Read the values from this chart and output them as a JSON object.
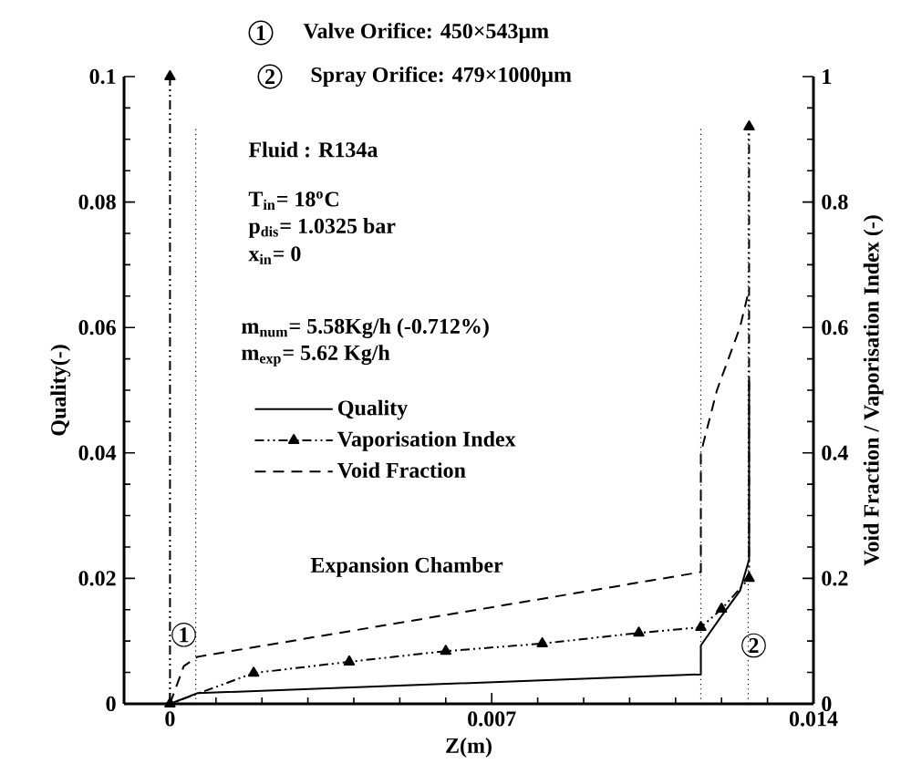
{
  "chart_data": {
    "type": "line",
    "xlabel": "Z(m)",
    "ylabel": "Quality(-)",
    "y2label": "Void Fraction / Vaporisation Index  (-)",
    "xlim": [
      -0.001,
      0.014
    ],
    "ylim": [
      0,
      0.1
    ],
    "y2lim": [
      0,
      1
    ],
    "xticks": [
      0,
      0.007,
      0.014
    ],
    "yticks": [
      0,
      0.02,
      0.04,
      0.06,
      0.08,
      0.1
    ],
    "y2ticks": [
      0,
      0.2,
      0.4,
      0.6,
      0.8,
      1
    ],
    "legend": "left",
    "series": [
      {
        "name": "Quality",
        "color": "#000000",
        "line_style": "solid",
        "marker": "none",
        "x": [
          0,
          0.0006,
          0.01155,
          0.01155,
          0.012,
          0.0124,
          0.0126,
          0.0126
        ],
        "values": [
          0,
          0.0017,
          0.0047,
          0.0093,
          0.014,
          0.018,
          0.023,
          0.052
        ]
      },
      {
        "name": "Vaporisation Index",
        "color": "#000000",
        "line_style": "dashdotted",
        "marker": "triangle",
        "axis": "y2",
        "x": [
          0,
          0,
          0.00182,
          0.0039,
          0.006,
          0.0081,
          0.0102,
          0.01155,
          0.012,
          0.0126,
          0.0126
        ],
        "values": [
          1,
          0,
          0.049,
          0.067,
          0.084,
          0.096,
          0.113,
          0.122,
          0.151,
          0.2,
          0.92
        ]
      },
      {
        "name": "Void Fraction",
        "color": "#000000",
        "line_style": "dashed",
        "marker": "none",
        "axis": "y2",
        "x": [
          0,
          0.0003,
          0.0006,
          0.01155,
          0.01155,
          0.0119,
          0.0124,
          0.0126
        ],
        "values": [
          0,
          0.06,
          0.075,
          0.21,
          0.4,
          0.5,
          0.6,
          0.66
        ]
      }
    ],
    "ref_lines": [
      {
        "axis": "x",
        "value": 0.00056,
        "label": null,
        "line_style": "dotted"
      },
      {
        "axis": "x",
        "value": 0.01155,
        "label": null,
        "line_style": "dotted"
      },
      {
        "axis": "x",
        "value": 0.01258,
        "label": null,
        "line_style": "dotted"
      }
    ],
    "annotations": [
      "1",
      "Valve Orifice: 450×543μm",
      "2",
      "Spray Orifice: 479×1000μm",
      "Fluid : R134a",
      "T$_{in}$= 18$^{o}$C",
      "p$_{dis}$= 1.0325 bar",
      "x$_{in}$=  0",
      "m$_{num}$= 5.58Kg/h (-0.712%)",
      "m$_{exp}$= 5.62 Kg/h",
      "Expansion Chamber",
      {
        "text": "1",
        "x": 0.0003,
        "y": 0.011
      },
      {
        "text": "2",
        "x": 0.0127,
        "y": 0.0093
      }
    ]
  }
}
